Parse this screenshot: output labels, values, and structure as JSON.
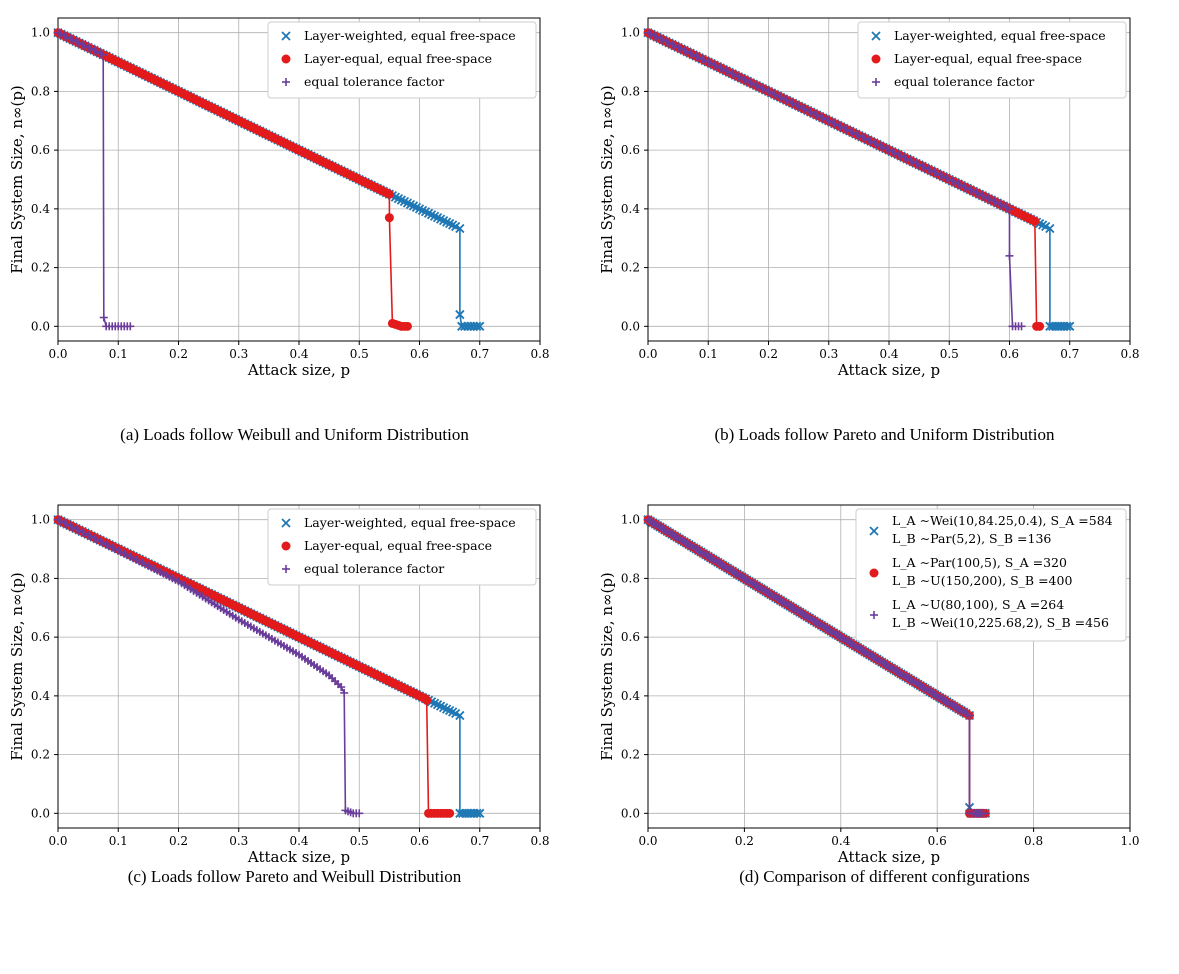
{
  "colors": {
    "weighted": "#1f77b4",
    "equal": "#e31a1c",
    "tolerance": "#6a3d9a",
    "grid": "#b0b0b0"
  },
  "panels": [
    {
      "caption": "(a) Loads follow Weibull and Uniform Distribution",
      "xlabel": "Attack size, p",
      "ylabel": "Final System Size, n∞(p)",
      "xlim": [
        0,
        0.8
      ],
      "ylim": [
        -0.05,
        1.05
      ],
      "xticks": [
        "0.0",
        "0.1",
        "0.2",
        "0.3",
        "0.4",
        "0.5",
        "0.6",
        "0.7",
        "0.8"
      ],
      "yticks": [
        "0.0",
        "0.2",
        "0.4",
        "0.6",
        "0.8",
        "1.0"
      ],
      "legend": [
        {
          "label": "Layer-weighted, equal free-space",
          "marker": "x",
          "color": "#1f77b4"
        },
        {
          "label": "Layer-equal, equal free-space",
          "marker": "o",
          "color": "#e31a1c"
        },
        {
          "label": "equal tolerance factor",
          "marker": "+",
          "color": "#6a3d9a"
        }
      ],
      "series": [
        {
          "marker": "x",
          "color": "#1f77b4",
          "points": [
            [
              0,
              1
            ],
            [
              0.55,
              0.45
            ],
            [
              0.66,
              0.34
            ],
            [
              0.667,
              0.333
            ],
            [
              0.667,
              0.04
            ],
            [
              0.67,
              0
            ],
            [
              0.7,
              0
            ]
          ]
        },
        {
          "marker": "o",
          "color": "#e31a1c",
          "points": [
            [
              0,
              1
            ],
            [
              0.55,
              0.45
            ],
            [
              0.55,
              0.37
            ],
            [
              0.555,
              0.01
            ],
            [
              0.57,
              0
            ],
            [
              0.58,
              0
            ]
          ]
        },
        {
          "marker": "+",
          "color": "#6a3d9a",
          "points": [
            [
              0,
              1
            ],
            [
              0.075,
              0.925
            ],
            [
              0.076,
              0.03
            ],
            [
              0.08,
              0
            ],
            [
              0.12,
              0
            ]
          ]
        }
      ]
    },
    {
      "caption": "(b) Loads follow Pareto and Uniform Distribution",
      "xlabel": "Attack size, p",
      "ylabel": "Final System Size, n∞(p)",
      "xlim": [
        0,
        0.8
      ],
      "ylim": [
        -0.05,
        1.05
      ],
      "xticks": [
        "0.0",
        "0.1",
        "0.2",
        "0.3",
        "0.4",
        "0.5",
        "0.6",
        "0.7",
        "0.8"
      ],
      "yticks": [
        "0.0",
        "0.2",
        "0.4",
        "0.6",
        "0.8",
        "1.0"
      ],
      "legend": [
        {
          "label": "Layer-weighted, equal free-space",
          "marker": "x",
          "color": "#1f77b4"
        },
        {
          "label": "Layer-equal, equal free-space",
          "marker": "o",
          "color": "#e31a1c"
        },
        {
          "label": "equal tolerance factor",
          "marker": "+",
          "color": "#6a3d9a"
        }
      ],
      "series": [
        {
          "marker": "x",
          "color": "#1f77b4",
          "points": [
            [
              0,
              1
            ],
            [
              0.66,
              0.34
            ],
            [
              0.667,
              0.333
            ],
            [
              0.667,
              0
            ],
            [
              0.7,
              0
            ]
          ]
        },
        {
          "marker": "o",
          "color": "#e31a1c",
          "points": [
            [
              0,
              1
            ],
            [
              0.64,
              0.36
            ],
            [
              0.642,
              0.358
            ],
            [
              0.645,
              0
            ],
            [
              0.65,
              0
            ]
          ]
        },
        {
          "marker": "+",
          "color": "#6a3d9a",
          "points": [
            [
              0,
              1
            ],
            [
              0.6,
              0.4
            ],
            [
              0.6,
              0.24
            ],
            [
              0.605,
              0
            ],
            [
              0.62,
              0
            ]
          ]
        }
      ]
    },
    {
      "caption": "(c) Loads follow Pareto and Weibull Distribution",
      "xlabel": "Attack size, p",
      "ylabel": "Final System Size, n∞(p)",
      "xlim": [
        0,
        0.8
      ],
      "ylim": [
        -0.05,
        1.05
      ],
      "xticks": [
        "0.0",
        "0.1",
        "0.2",
        "0.3",
        "0.4",
        "0.5",
        "0.6",
        "0.7",
        "0.8"
      ],
      "yticks": [
        "0.0",
        "0.2",
        "0.4",
        "0.6",
        "0.8",
        "1.0"
      ],
      "legend": [
        {
          "label": "Layer-weighted, equal free-space",
          "marker": "x",
          "color": "#1f77b4"
        },
        {
          "label": "Layer-equal, equal free-space",
          "marker": "o",
          "color": "#e31a1c"
        },
        {
          "label": "equal tolerance factor",
          "marker": "+",
          "color": "#6a3d9a"
        }
      ],
      "series": [
        {
          "marker": "x",
          "color": "#1f77b4",
          "points": [
            [
              0,
              1
            ],
            [
              0.61,
              0.39
            ],
            [
              0.66,
              0.34
            ],
            [
              0.667,
              0.333
            ],
            [
              0.667,
              0
            ],
            [
              0.7,
              0
            ]
          ]
        },
        {
          "marker": "o",
          "color": "#e31a1c",
          "points": [
            [
              0,
              1
            ],
            [
              0.61,
              0.39
            ],
            [
              0.612,
              0.385
            ],
            [
              0.615,
              0
            ],
            [
              0.65,
              0
            ]
          ]
        },
        {
          "marker": "+",
          "color": "#6a3d9a",
          "points": [
            [
              0,
              1
            ],
            [
              0.2,
              0.79
            ],
            [
              0.3,
              0.66
            ],
            [
              0.4,
              0.54
            ],
            [
              0.45,
              0.47
            ],
            [
              0.47,
              0.43
            ],
            [
              0.475,
              0.41
            ],
            [
              0.477,
              0.01
            ],
            [
              0.49,
              0
            ],
            [
              0.5,
              0
            ]
          ]
        }
      ]
    },
    {
      "caption": "(d) Comparison of different configurations",
      "xlabel": "Attack size, p",
      "ylabel": "Final System Size, n∞(p)",
      "xlim": [
        0,
        1.0
      ],
      "ylim": [
        -0.05,
        1.05
      ],
      "xticks": [
        "0.0",
        "0.2",
        "0.4",
        "0.6",
        "0.8",
        "1.0"
      ],
      "yticks": [
        "0.0",
        "0.2",
        "0.4",
        "0.6",
        "0.8",
        "1.0"
      ],
      "legend": [
        {
          "label": "L_A ∼Wei(10,84.25,0.4), S_A =584",
          "label2": "L_B ∼Par(5,2), S_B =136",
          "marker": "x",
          "color": "#1f77b4"
        },
        {
          "label": "L_A ∼Par(100,5), S_A =320",
          "label2": "L_B ∼U(150,200), S_B =400",
          "marker": "o",
          "color": "#e31a1c"
        },
        {
          "label": "L_A ∼U(80,100), S_A =264",
          "label2": "L_B ∼Wei(10,225.68,2), S_B =456",
          "marker": "+",
          "color": "#6a3d9a"
        }
      ],
      "series": [
        {
          "marker": "x",
          "color": "#1f77b4",
          "points": [
            [
              0,
              1
            ],
            [
              0.66,
              0.34
            ],
            [
              0.667,
              0.333
            ],
            [
              0.667,
              0.02
            ],
            [
              0.67,
              0
            ],
            [
              0.7,
              0
            ]
          ]
        },
        {
          "marker": "o",
          "color": "#e31a1c",
          "points": [
            [
              0,
              1
            ],
            [
              0.66,
              0.34
            ],
            [
              0.667,
              0.333
            ],
            [
              0.667,
              0
            ],
            [
              0.7,
              0
            ]
          ]
        },
        {
          "marker": "+",
          "color": "#6a3d9a",
          "points": [
            [
              0,
              1
            ],
            [
              0.66,
              0.34
            ],
            [
              0.667,
              0.333
            ],
            [
              0.667,
              0
            ],
            [
              0.7,
              0
            ]
          ]
        }
      ]
    }
  ]
}
